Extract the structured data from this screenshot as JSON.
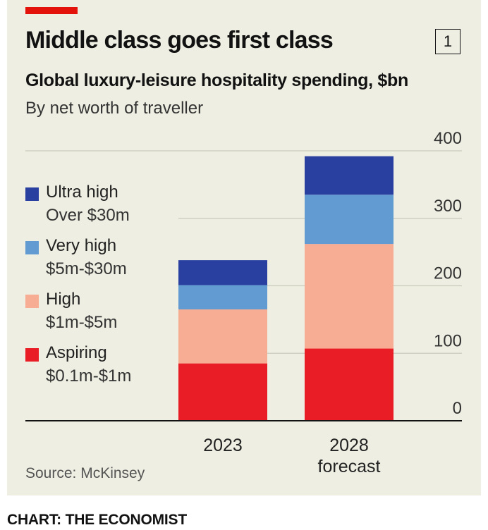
{
  "header": {
    "title": "Middle class goes first class",
    "chart_number": "1",
    "subtitle": "Global luxury-leisure hospitality spending, $bn",
    "subsubtitle": "By net worth of traveller"
  },
  "footer": {
    "source": "Source: McKinsey",
    "credit": "CHART: THE ECONOMIST"
  },
  "colors": {
    "accent": "#e3120b",
    "background": "#eeeee2",
    "Ultra high": "#2a40a0",
    "Very high": "#629bd2",
    "High": "#f7ad94",
    "Aspiring": "#e91d25"
  },
  "chart_data": {
    "type": "bar",
    "stacked": true,
    "title": "Global luxury-leisure hospitality spending, $bn",
    "subtitle": "By net worth of traveller",
    "categories": [
      "2023",
      "2028"
    ],
    "category_sublabels": [
      "",
      "forecast"
    ],
    "series": [
      {
        "name": "Aspiring",
        "range": "$0.1m-$1m",
        "values": [
          85,
          107
        ]
      },
      {
        "name": "High",
        "range": "$1m-$5m",
        "values": [
          80,
          155
        ]
      },
      {
        "name": "Very high",
        "range": "$5m-$30m",
        "values": [
          36,
          73
        ]
      },
      {
        "name": "Ultra high",
        "range": "Over $30m",
        "values": [
          37,
          57
        ]
      }
    ],
    "legend_order": [
      "Ultra high",
      "Very high",
      "High",
      "Aspiring"
    ],
    "ylim": [
      0,
      400
    ],
    "yticks": [
      0,
      100,
      200,
      300,
      400
    ],
    "yaxis_position": "right",
    "grid": true,
    "legend_position": "left"
  }
}
